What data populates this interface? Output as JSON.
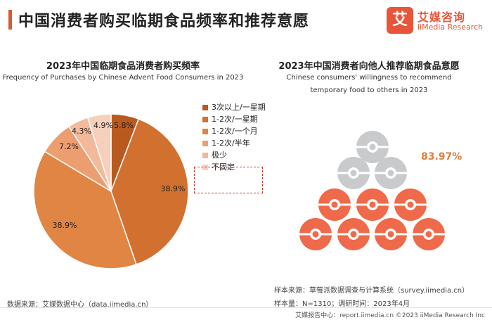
{
  "page": {
    "title": "中国消费者购买临期食品频率和推荐意愿",
    "logo_cn": "艾媒咨询",
    "logo_en": "iiMedia Research",
    "logo_glyph": "艾"
  },
  "chart_data": [
    {
      "type": "pie",
      "title": "2023年中国临期食品消费者购买频率",
      "subtitle": "Frequency of Purchases by Chinese Advent Food Consumers in 2023",
      "categories": [
        "3次以上/一星期",
        "1-2次/一星期",
        "1-2次/一个月",
        "1-2次/半年",
        "极少",
        "不固定"
      ],
      "values": [
        5.8,
        38.9,
        38.9,
        7.2,
        4.3,
        4.9
      ],
      "labels": [
        "5.8%",
        "38.9%",
        "38.9%",
        "7.2%",
        "4.3%",
        "4.9%"
      ],
      "colors": [
        "#b85a1f",
        "#d2712f",
        "#e08543",
        "#ec9e70",
        "#f2b99a",
        "#f6cfbd"
      ],
      "legend_position": "right",
      "highlighted_legend_items": [
        "1-2次/一星期",
        "1-2次/一个月"
      ]
    },
    {
      "type": "pictograph",
      "title": "2023年中国消费者向他人推荐临期食品意愿",
      "subtitle_line1": "Chinese consumers' willingness to recommend",
      "subtitle_line2": "temporary food to others in 2023",
      "value": 83.97,
      "value_label": "83.97%",
      "total_icons": 10,
      "highlighted_icons": 7,
      "colors": {
        "highlight": "#ee6a4b",
        "base": "#c9cacc"
      }
    }
  ],
  "sources": {
    "left": "数据来源：艾媒数据中心（data.iimedia.cn）",
    "right_line1": "样本来源：草莓派数据调查与计算系统（survey.iimedia.cn）",
    "right_line2": "样本量：N=1310；调研时间：2023年4月",
    "footer": "艾媒报告中心：report.iimedia.cn  ©2023  iiMedia Research  Inc"
  }
}
